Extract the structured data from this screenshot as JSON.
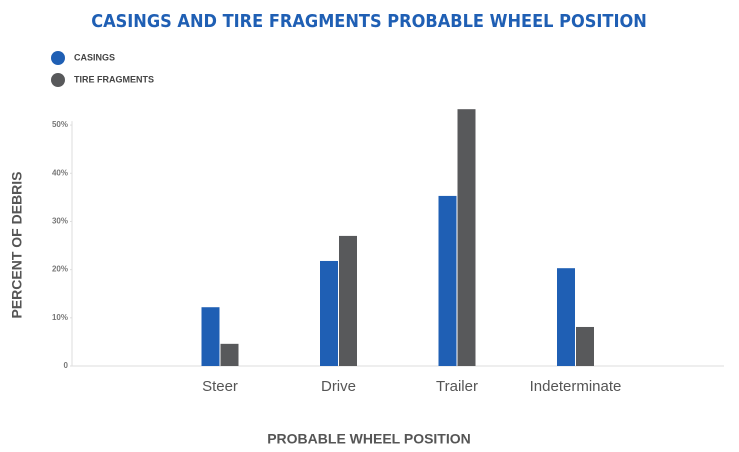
{
  "chart_data": {
    "type": "bar",
    "title": "CASINGS AND TIRE FRAGMENTS PROBABLE WHEEL POSITION",
    "x_label": "PROBABLE WHEEL POSITION",
    "y_label": "PERCENT OF DEBRIS",
    "categories": [
      "Steer",
      "Drive",
      "Trailer",
      "Indeterminate"
    ],
    "series": [
      {
        "name": "CASINGS",
        "color": "#1f5fb4",
        "values": [
          12.2,
          21.8,
          35.3,
          20.3
        ]
      },
      {
        "name": "TIRE FRAGMENTS",
        "color": "#58595b",
        "values": [
          4.6,
          27.0,
          53.3,
          8.1
        ]
      }
    ],
    "ylim": [
      0,
      55
    ],
    "yticks": [
      0,
      {
        "value": 10,
        "label": "10%"
      },
      {
        "value": 20,
        "label": "20%"
      },
      {
        "value": 30,
        "label": "30%"
      },
      {
        "value": 40,
        "label": "40%"
      },
      {
        "value": 50,
        "label": "50%"
      }
    ],
    "grid": false,
    "legend": "top-left"
  }
}
